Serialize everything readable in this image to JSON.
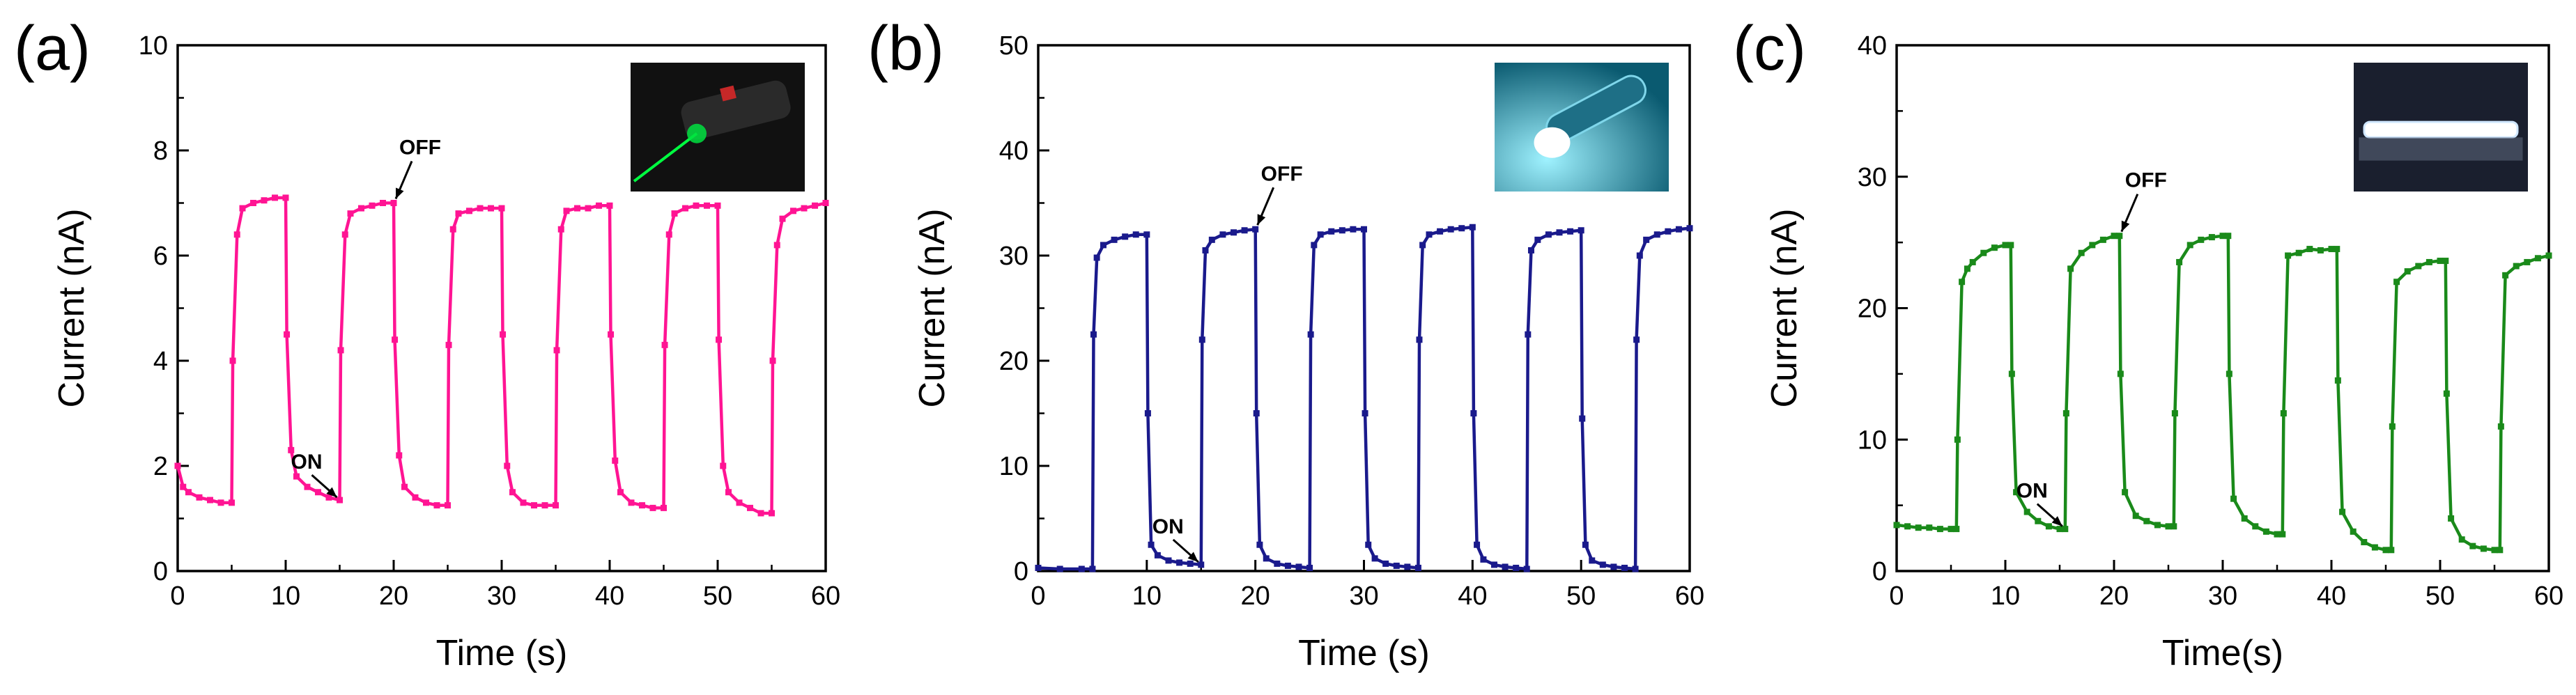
{
  "chart_data": [
    {
      "type": "line",
      "panel_label": "(a)",
      "xlabel": "Time (s)",
      "ylabel": "Current (nA)",
      "xlim": [
        0,
        60
      ],
      "ylim": [
        0,
        10
      ],
      "xticks": [
        0,
        10,
        20,
        30,
        40,
        50,
        60
      ],
      "yticks": [
        0,
        2,
        4,
        6,
        8,
        10
      ],
      "color": "#ff1493",
      "inset": "green-laser-pointer",
      "annotations": [
        {
          "text": "OFF",
          "x": 20,
          "y": 7.0
        },
        {
          "text": "ON",
          "x": 15,
          "y": 1.35
        }
      ],
      "cycle_period_s": 10,
      "on_duration_s": 5,
      "series": [
        {
          "x": [
            0,
            0.5,
            1,
            2,
            3,
            4,
            5,
            5.1,
            5.5,
            6,
            7,
            8,
            9,
            10,
            10.1,
            10.5,
            11,
            12,
            13,
            14,
            15,
            15.1,
            15.5,
            16,
            17,
            18,
            19,
            20,
            20.1,
            20.5,
            21,
            22,
            23,
            24,
            25,
            25.1,
            25.5,
            26,
            27,
            28,
            29,
            30,
            30.1,
            30.5,
            31,
            32,
            33,
            34,
            35,
            35.1,
            35.5,
            36,
            37,
            38,
            39,
            40,
            40.1,
            40.5,
            41,
            42,
            43,
            44,
            45,
            45.1,
            45.5,
            46,
            47,
            48,
            49,
            50,
            50.1,
            50.5,
            51,
            52,
            53,
            54,
            55,
            55.1,
            55.5,
            56,
            57,
            58,
            59,
            60
          ],
          "y": [
            2.0,
            1.6,
            1.5,
            1.4,
            1.35,
            1.3,
            1.3,
            4.0,
            6.4,
            6.9,
            7.0,
            7.05,
            7.1,
            7.1,
            4.5,
            2.3,
            1.8,
            1.6,
            1.5,
            1.4,
            1.35,
            4.2,
            6.4,
            6.8,
            6.9,
            6.95,
            7.0,
            7.0,
            4.4,
            2.2,
            1.6,
            1.4,
            1.3,
            1.25,
            1.25,
            4.3,
            6.5,
            6.8,
            6.85,
            6.9,
            6.9,
            6.9,
            4.5,
            2.0,
            1.5,
            1.3,
            1.25,
            1.25,
            1.25,
            4.2,
            6.5,
            6.85,
            6.9,
            6.9,
            6.95,
            6.95,
            4.5,
            2.1,
            1.5,
            1.3,
            1.25,
            1.2,
            1.2,
            4.3,
            6.4,
            6.8,
            6.9,
            6.95,
            6.95,
            6.95,
            4.4,
            2.0,
            1.5,
            1.3,
            1.2,
            1.1,
            1.1,
            4.0,
            6.2,
            6.7,
            6.85,
            6.9,
            6.95,
            7.0
          ]
        }
      ]
    },
    {
      "type": "line",
      "panel_label": "(b)",
      "xlabel": "Time (s)",
      "ylabel": "Current (nA)",
      "xlim": [
        0,
        60
      ],
      "ylim": [
        0,
        50
      ],
      "xticks": [
        0,
        10,
        20,
        30,
        40,
        50,
        60
      ],
      "yticks": [
        0,
        10,
        20,
        30,
        40,
        50
      ],
      "color": "#1a1a8c",
      "inset": "flashlight",
      "annotations": [
        {
          "text": "OFF",
          "x": 20,
          "y": 32.5
        },
        {
          "text": "ON",
          "x": 15,
          "y": 0.6
        }
      ],
      "series": [
        {
          "x": [
            0,
            2,
            4,
            5,
            5.1,
            5.4,
            6,
            7,
            8,
            9,
            10,
            10.1,
            10.4,
            11,
            12,
            13,
            14,
            15,
            15.1,
            15.4,
            16,
            17,
            18,
            19,
            20,
            20.1,
            20.4,
            21,
            22,
            23,
            24,
            25,
            25.1,
            25.4,
            26,
            27,
            28,
            29,
            30,
            30.1,
            30.4,
            31,
            32,
            33,
            34,
            35,
            35.1,
            35.4,
            36,
            37,
            38,
            39,
            40,
            40.1,
            40.4,
            41,
            42,
            43,
            44,
            45,
            45.1,
            45.4,
            46,
            47,
            48,
            49,
            50,
            50.1,
            50.4,
            51,
            52,
            53,
            54,
            55,
            55.1,
            55.4,
            56,
            57,
            58,
            59,
            60
          ],
          "y": [
            0.3,
            0.2,
            0.2,
            0.2,
            22.5,
            29.8,
            31.0,
            31.5,
            31.8,
            32.0,
            32.0,
            15.0,
            2.5,
            1.5,
            1.0,
            0.8,
            0.7,
            0.6,
            22.0,
            30.5,
            31.5,
            32.0,
            32.2,
            32.4,
            32.5,
            15.0,
            2.5,
            1.2,
            0.7,
            0.5,
            0.4,
            0.3,
            22.5,
            31.0,
            32.0,
            32.3,
            32.4,
            32.5,
            32.5,
            15.0,
            2.5,
            1.2,
            0.7,
            0.5,
            0.4,
            0.3,
            22.0,
            31.0,
            32.0,
            32.3,
            32.5,
            32.6,
            32.7,
            15.0,
            2.5,
            1.1,
            0.6,
            0.4,
            0.3,
            0.2,
            22.5,
            30.5,
            31.5,
            32.0,
            32.2,
            32.3,
            32.4,
            14.5,
            2.5,
            1.0,
            0.6,
            0.4,
            0.3,
            0.2,
            22.0,
            30.0,
            31.5,
            32.0,
            32.3,
            32.5,
            32.6
          ]
        }
      ]
    },
    {
      "type": "line",
      "panel_label": "(c)",
      "xlabel": "Time(s)",
      "ylabel": "Current (nA)",
      "xlim": [
        0,
        60
      ],
      "ylim": [
        0,
        40
      ],
      "xticks": [
        0,
        10,
        20,
        30,
        40,
        50,
        60
      ],
      "yticks": [
        0,
        10,
        20,
        30,
        40
      ],
      "color": "#1a8a1a",
      "inset": "fluorescent-tube-lamp",
      "annotations": [
        {
          "text": "OFF",
          "x": 20.5,
          "y": 25.5
        },
        {
          "text": "ON",
          "x": 15.5,
          "y": 3.2
        }
      ],
      "series": [
        {
          "x": [
            0,
            1,
            2,
            3,
            4,
            5,
            5.5,
            5.6,
            6,
            6.5,
            7,
            8,
            9,
            10,
            10.5,
            10.6,
            11,
            12,
            13,
            14,
            15,
            15.5,
            15.6,
            16,
            17,
            18,
            19,
            20,
            20.5,
            20.6,
            21,
            22,
            23,
            24,
            25,
            25.5,
            25.6,
            26,
            27,
            28,
            29,
            30,
            30.5,
            30.6,
            31,
            32,
            33,
            34,
            35,
            35.5,
            35.6,
            36,
            37,
            38,
            39,
            40,
            40.5,
            40.6,
            41,
            42,
            43,
            44,
            45,
            45.5,
            45.6,
            46,
            47,
            48,
            49,
            50,
            50.5,
            50.6,
            51,
            52,
            53,
            54,
            55,
            55.5,
            55.6,
            56,
            57,
            58,
            59,
            60
          ],
          "y": [
            3.5,
            3.4,
            3.3,
            3.3,
            3.2,
            3.2,
            3.2,
            10.0,
            22.0,
            23.0,
            23.5,
            24.2,
            24.6,
            24.8,
            24.8,
            15.0,
            6.0,
            4.5,
            3.8,
            3.4,
            3.2,
            3.2,
            12.0,
            23.0,
            24.2,
            24.8,
            25.2,
            25.5,
            25.5,
            15.0,
            6.0,
            4.2,
            3.8,
            3.5,
            3.4,
            3.4,
            12.0,
            23.5,
            24.8,
            25.2,
            25.4,
            25.5,
            25.5,
            15.0,
            5.5,
            4.0,
            3.4,
            3.0,
            2.8,
            2.8,
            12.0,
            24.0,
            24.2,
            24.5,
            24.4,
            24.5,
            24.5,
            14.5,
            4.5,
            3.0,
            2.2,
            1.8,
            1.6,
            1.6,
            11.0,
            22.0,
            22.8,
            23.2,
            23.5,
            23.6,
            23.6,
            13.5,
            4.0,
            2.4,
            1.9,
            1.7,
            1.6,
            1.6,
            11.0,
            22.5,
            23.2,
            23.5,
            23.8,
            24.0
          ]
        }
      ]
    }
  ]
}
